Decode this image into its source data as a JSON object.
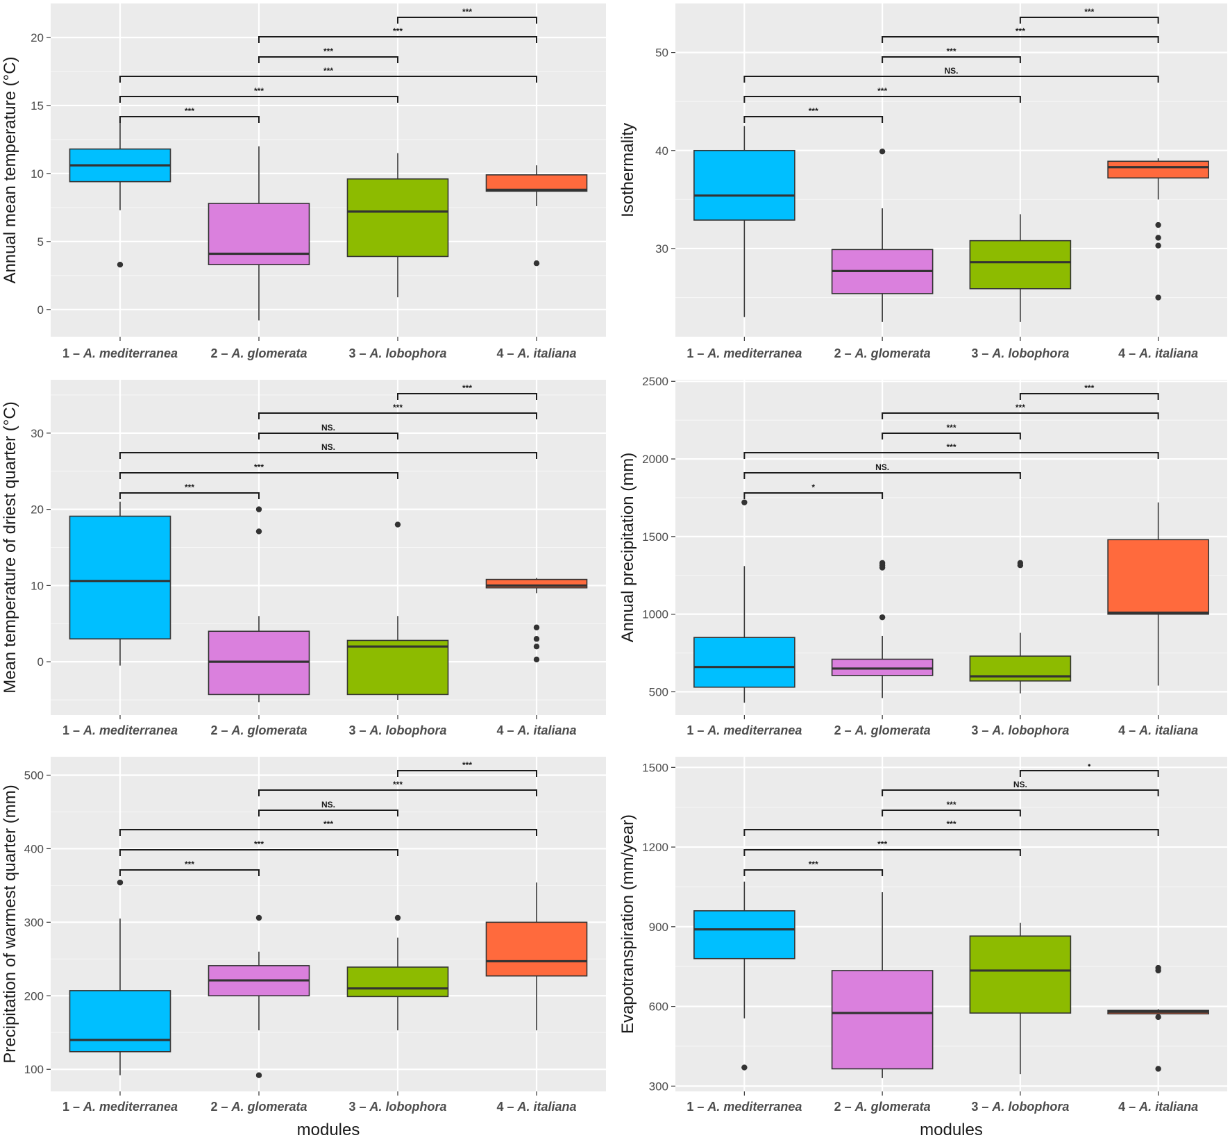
{
  "categories": [
    "1 – A. mediterranea",
    "2 – A. glomerata",
    "3 – A. lobophora",
    "4 – A. italiana"
  ],
  "category_parts": [
    {
      "prefix": "1 – ",
      "species": "A. mediterranea"
    },
    {
      "prefix": "2 – ",
      "species": "A. glomerata"
    },
    {
      "prefix": "3 – ",
      "species": "A. lobophora"
    },
    {
      "prefix": "4 – ",
      "species": "A. italiana"
    }
  ],
  "colors": {
    "module1": "#00bfff",
    "module2": "#da80dd",
    "module3": "#8dbb00",
    "module4": "#ff6a3d"
  },
  "chart_data": [
    {
      "type": "box",
      "id": "annual-mean-temp",
      "ylabel": "Annual mean temperature (°C)",
      "xlabel": "",
      "ylim": [
        -2,
        22.5
      ],
      "yticks": [
        0,
        5,
        10,
        15,
        20
      ],
      "minor": [
        2.5,
        7.5,
        12.5,
        17.5
      ],
      "boxes": [
        {
          "q1": 9.4,
          "median": 10.6,
          "q3": 11.8,
          "lower": 7.3,
          "upper": 13.8,
          "outliers": [
            3.3
          ]
        },
        {
          "q1": 3.3,
          "median": 4.1,
          "q3": 7.8,
          "lower": -0.8,
          "upper": 12.0,
          "outliers": []
        },
        {
          "q1": 3.9,
          "median": 7.2,
          "q3": 9.6,
          "lower": 0.9,
          "upper": 11.5,
          "outliers": []
        },
        {
          "q1": 8.7,
          "median": 8.8,
          "q3": 9.9,
          "lower": 7.6,
          "upper": 10.6,
          "outliers": [
            3.4
          ]
        }
      ],
      "comparisons": [
        {
          "from": 1,
          "to": 2,
          "label": "***"
        },
        {
          "from": 1,
          "to": 3,
          "label": "***"
        },
        {
          "from": 1,
          "to": 4,
          "label": "***"
        },
        {
          "from": 2,
          "to": 3,
          "label": "***"
        },
        {
          "from": 2,
          "to": 4,
          "label": "***"
        },
        {
          "from": 3,
          "to": 4,
          "label": "***"
        }
      ]
    },
    {
      "type": "box",
      "id": "isothermality",
      "ylabel": "Isothermality",
      "xlabel": "",
      "ylim": [
        21,
        55
      ],
      "yticks": [
        30,
        40,
        50
      ],
      "minor": [
        25,
        35,
        45
      ],
      "boxes": [
        {
          "q1": 32.9,
          "median": 35.4,
          "q3": 40.0,
          "lower": 23.0,
          "upper": 42.5,
          "outliers": []
        },
        {
          "q1": 25.4,
          "median": 27.7,
          "q3": 29.9,
          "lower": 22.5,
          "upper": 34.1,
          "outliers": [
            39.9
          ]
        },
        {
          "q1": 25.9,
          "median": 28.6,
          "q3": 30.8,
          "lower": 22.5,
          "upper": 33.5,
          "outliers": []
        },
        {
          "q1": 37.2,
          "median": 38.3,
          "q3": 38.9,
          "lower": 35.0,
          "upper": 39.2,
          "outliers": [
            32.4,
            31.1,
            30.3,
            25.0
          ]
        }
      ],
      "comparisons": [
        {
          "from": 1,
          "to": 2,
          "label": "***"
        },
        {
          "from": 1,
          "to": 3,
          "label": "***"
        },
        {
          "from": 1,
          "to": 4,
          "label": "NS."
        },
        {
          "from": 2,
          "to": 3,
          "label": "***"
        },
        {
          "from": 2,
          "to": 4,
          "label": "***"
        },
        {
          "from": 3,
          "to": 4,
          "label": "***"
        }
      ]
    },
    {
      "type": "box",
      "id": "driest-quarter-temp",
      "ylabel": "Mean temperature of driest quarter (°C)",
      "xlabel": "",
      "ylim": [
        -7,
        37
      ],
      "yticks": [
        0,
        10,
        20,
        30
      ],
      "minor": [
        -5,
        5,
        15,
        25,
        35
      ],
      "boxes": [
        {
          "q1": 3.0,
          "median": 10.6,
          "q3": 19.1,
          "lower": -0.5,
          "upper": 21.0,
          "outliers": []
        },
        {
          "q1": -4.3,
          "median": 0.0,
          "q3": 4.0,
          "lower": -5.3,
          "upper": 6.0,
          "outliers": [
            20.0,
            17.1
          ]
        },
        {
          "q1": -4.3,
          "median": 2.0,
          "q3": 2.8,
          "lower": -5.0,
          "upper": 6.0,
          "outliers": [
            18.0
          ]
        },
        {
          "q1": 9.7,
          "median": 10.0,
          "q3": 10.8,
          "lower": 9.0,
          "upper": 11.0,
          "outliers": [
            4.5,
            3.0,
            2.0,
            0.3
          ]
        }
      ],
      "comparisons": [
        {
          "from": 1,
          "to": 2,
          "label": "***"
        },
        {
          "from": 1,
          "to": 3,
          "label": "***"
        },
        {
          "from": 1,
          "to": 4,
          "label": "NS."
        },
        {
          "from": 2,
          "to": 3,
          "label": "NS."
        },
        {
          "from": 2,
          "to": 4,
          "label": "***"
        },
        {
          "from": 3,
          "to": 4,
          "label": "***"
        }
      ]
    },
    {
      "type": "box",
      "id": "annual-precip",
      "ylabel": "Annual precipitation (mm)",
      "xlabel": "",
      "ylim": [
        350,
        2510
      ],
      "yticks": [
        500,
        1000,
        1500,
        2000,
        2500
      ],
      "minor": [
        750,
        1250,
        1750,
        2250
      ],
      "boxes": [
        {
          "q1": 530,
          "median": 660,
          "q3": 850,
          "lower": 430,
          "upper": 1310,
          "outliers": [
            1720
          ]
        },
        {
          "q1": 605,
          "median": 650,
          "q3": 710,
          "lower": 460,
          "upper": 860,
          "outliers": [
            1330,
            1315,
            1300,
            980
          ]
        },
        {
          "q1": 570,
          "median": 600,
          "q3": 730,
          "lower": 490,
          "upper": 880,
          "outliers": [
            1330,
            1315
          ]
        },
        {
          "q1": 1000,
          "median": 1010,
          "q3": 1480,
          "lower": 540,
          "upper": 1720,
          "outliers": []
        }
      ],
      "comparisons": [
        {
          "from": 1,
          "to": 2,
          "label": "*"
        },
        {
          "from": 1,
          "to": 3,
          "label": "NS."
        },
        {
          "from": 1,
          "to": 4,
          "label": "***"
        },
        {
          "from": 2,
          "to": 3,
          "label": "***"
        },
        {
          "from": 2,
          "to": 4,
          "label": "***"
        },
        {
          "from": 3,
          "to": 4,
          "label": "***"
        }
      ]
    },
    {
      "type": "box",
      "id": "warmest-quarter-precip",
      "ylabel": "Precipitation of warmest quarter (mm)",
      "xlabel": "modules",
      "ylim": [
        70,
        525
      ],
      "yticks": [
        100,
        200,
        300,
        400,
        500
      ],
      "minor": [
        150,
        250,
        350,
        450
      ],
      "boxes": [
        {
          "q1": 124,
          "median": 140,
          "q3": 207,
          "lower": 92,
          "upper": 305,
          "outliers": [
            354
          ]
        },
        {
          "q1": 200,
          "median": 221,
          "q3": 241,
          "lower": 153,
          "upper": 260,
          "outliers": [
            306,
            92
          ]
        },
        {
          "q1": 199,
          "median": 210,
          "q3": 239,
          "lower": 153,
          "upper": 279,
          "outliers": [
            306
          ]
        },
        {
          "q1": 227,
          "median": 247,
          "q3": 300,
          "lower": 153,
          "upper": 354,
          "outliers": []
        }
      ],
      "comparisons": [
        {
          "from": 1,
          "to": 2,
          "label": "***"
        },
        {
          "from": 1,
          "to": 3,
          "label": "***"
        },
        {
          "from": 1,
          "to": 4,
          "label": "***"
        },
        {
          "from": 2,
          "to": 3,
          "label": "NS."
        },
        {
          "from": 2,
          "to": 4,
          "label": "***"
        },
        {
          "from": 3,
          "to": 4,
          "label": "***"
        }
      ]
    },
    {
      "type": "box",
      "id": "evapotranspiration",
      "ylabel": "Evapotranspiration (mm/year)",
      "xlabel": "modules",
      "ylim": [
        280,
        1540
      ],
      "yticks": [
        300,
        600,
        900,
        1200,
        1500
      ],
      "minor": [
        450,
        750,
        1050,
        1350
      ],
      "boxes": [
        {
          "q1": 780,
          "median": 890,
          "q3": 960,
          "lower": 555,
          "upper": 1070,
          "outliers": [
            370
          ]
        },
        {
          "q1": 365,
          "median": 575,
          "q3": 735,
          "lower": 330,
          "upper": 1030,
          "outliers": []
        },
        {
          "q1": 575,
          "median": 735,
          "q3": 865,
          "lower": 345,
          "upper": 915,
          "outliers": []
        },
        {
          "q1": 572,
          "median": 580,
          "q3": 585,
          "lower": 570,
          "upper": 590,
          "outliers": [
            745,
            735,
            560,
            365
          ]
        }
      ],
      "comparisons": [
        {
          "from": 1,
          "to": 2,
          "label": "***"
        },
        {
          "from": 1,
          "to": 3,
          "label": "***"
        },
        {
          "from": 1,
          "to": 4,
          "label": "***"
        },
        {
          "from": 2,
          "to": 3,
          "label": "***"
        },
        {
          "from": 2,
          "to": 4,
          "label": "NS."
        },
        {
          "from": 3,
          "to": 4,
          "label": "•"
        }
      ]
    }
  ]
}
